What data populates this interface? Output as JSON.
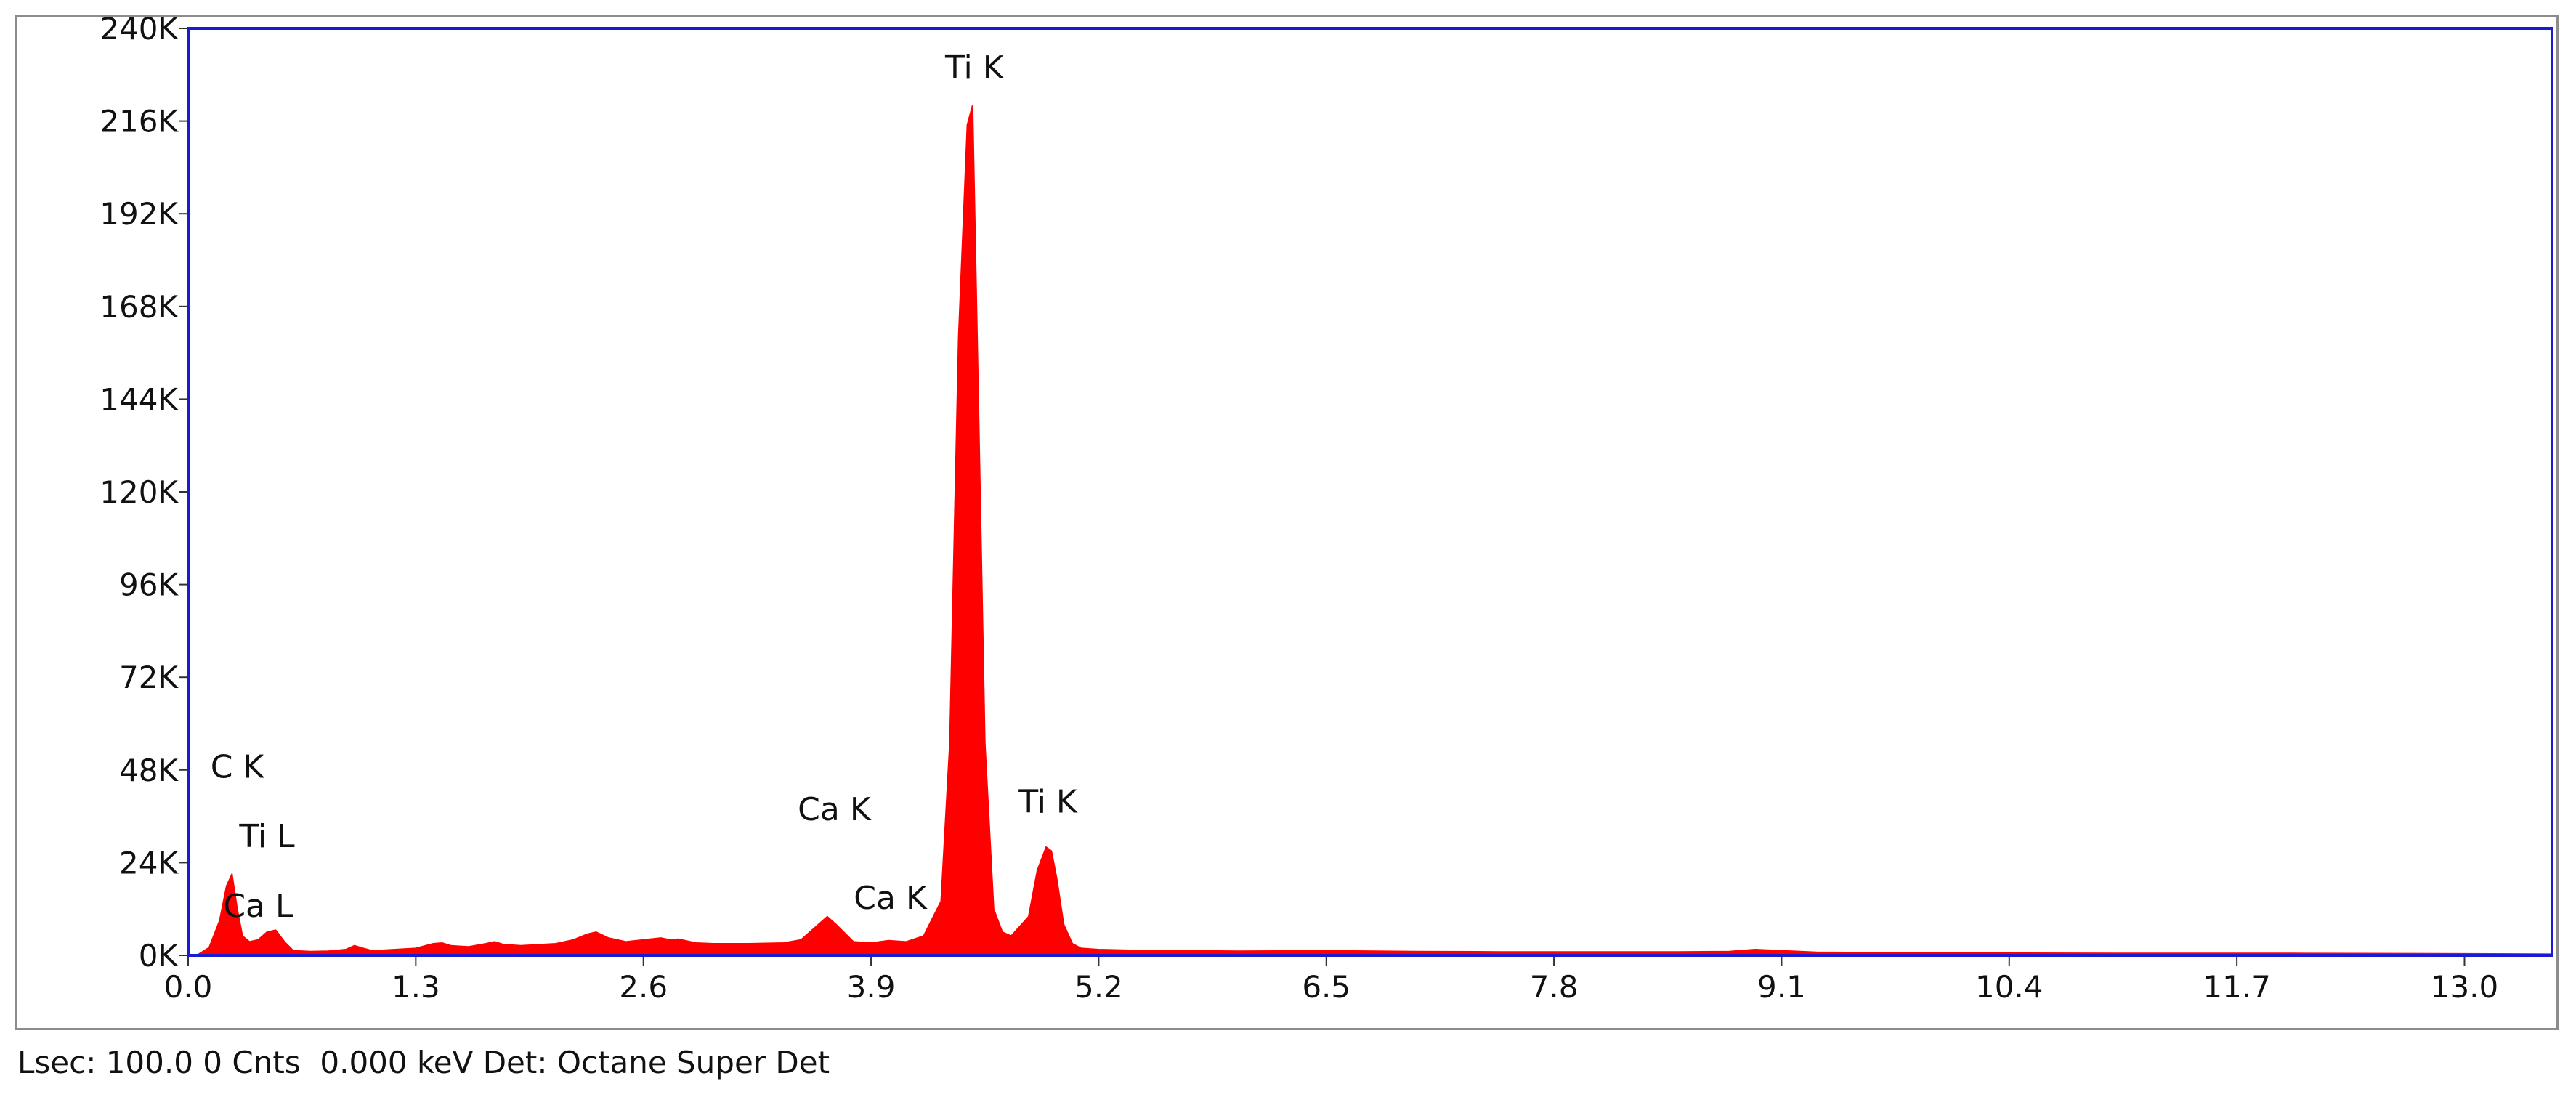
{
  "status_line": "Lsec: 100.0 0 Cnts  0.000 keV Det: Octane Super Det",
  "chart_data": {
    "type": "area",
    "title": "",
    "xlabel": "",
    "ylabel": "",
    "xlim": [
      0.0,
      13.5
    ],
    "ylim": [
      0,
      240000
    ],
    "x_ticks": [
      0.0,
      1.3,
      2.6,
      3.9,
      5.2,
      6.5,
      7.8,
      9.1,
      10.4,
      11.7,
      13.0
    ],
    "x_tick_labels": [
      "0.0",
      "1.3",
      "2.6",
      "3.9",
      "5.2",
      "6.5",
      "7.8",
      "9.1",
      "10.4",
      "11.7",
      "13.0"
    ],
    "y_ticks": [
      0,
      24000,
      48000,
      72000,
      96000,
      120000,
      144000,
      168000,
      192000,
      216000,
      240000
    ],
    "y_tick_labels": [
      "0K",
      "24K",
      "48K",
      "72K",
      "96K",
      "120K",
      "144K",
      "168K",
      "192K",
      "216K",
      "240K"
    ],
    "grid": false,
    "fill_color": "#ff0000",
    "frame_color": "#1a1ad6",
    "series": [
      {
        "x": [
          0.05,
          0.12,
          0.18,
          0.22,
          0.25,
          0.28,
          0.31,
          0.35,
          0.4,
          0.45,
          0.5,
          0.55,
          0.6,
          0.7,
          0.8,
          0.9,
          0.95,
          1.0,
          1.05,
          1.1,
          1.3,
          1.4,
          1.45,
          1.5,
          1.6,
          1.7,
          1.75,
          1.8,
          1.9,
          2.1,
          2.2,
          2.28,
          2.33,
          2.4,
          2.5,
          2.6,
          2.7,
          2.75,
          2.8,
          2.9,
          3.0,
          3.2,
          3.4,
          3.5,
          3.6,
          3.65,
          3.7,
          3.8,
          3.9,
          4.0,
          4.1,
          4.2,
          4.3,
          4.35,
          4.4,
          4.45,
          4.48,
          4.51,
          4.55,
          4.6,
          4.65,
          4.7,
          4.8,
          4.85,
          4.9,
          4.93,
          4.96,
          5.0,
          5.05,
          5.1,
          5.2,
          5.4,
          6.0,
          6.5,
          7.0,
          7.5,
          8.0,
          8.5,
          8.8,
          8.95,
          9.1,
          9.3,
          9.6,
          10.0,
          11.0,
          12.0,
          13.0,
          13.5
        ],
        "y": [
          0,
          2000,
          9000,
          18000,
          21000,
          12000,
          5000,
          3500,
          4000,
          6000,
          6500,
          3500,
          1200,
          1000,
          1100,
          1500,
          2500,
          1800,
          1200,
          1300,
          1800,
          3000,
          3200,
          2500,
          2200,
          3000,
          3500,
          2800,
          2500,
          3000,
          4000,
          5500,
          6000,
          4500,
          3500,
          4000,
          4500,
          4000,
          4200,
          3200,
          3000,
          3000,
          3200,
          4000,
          8000,
          10000,
          8000,
          3500,
          3200,
          3800,
          3500,
          5000,
          14000,
          55000,
          160000,
          215000,
          220000,
          150000,
          55000,
          12000,
          6000,
          5000,
          10000,
          22000,
          28000,
          27000,
          20000,
          8000,
          3000,
          1800,
          1500,
          1300,
          1100,
          1200,
          1000,
          900,
          900,
          900,
          1000,
          1500,
          1200,
          800,
          700,
          600,
          500,
          500,
          400,
          300
        ]
      }
    ],
    "annotations": [
      {
        "text": "Ti K",
        "x": 4.49,
        "y": 227000
      },
      {
        "text": "Ti K",
        "x": 4.91,
        "y": 37000
      },
      {
        "text": "Ca K",
        "x": 3.69,
        "y": 35000
      },
      {
        "text": "Ca K",
        "x": 4.01,
        "y": 12000
      },
      {
        "text": "C  K",
        "x": 0.28,
        "y": 46000
      },
      {
        "text": "Ti L",
        "x": 0.45,
        "y": 28000
      },
      {
        "text": "Ca L",
        "x": 0.4,
        "y": 10000
      }
    ]
  }
}
